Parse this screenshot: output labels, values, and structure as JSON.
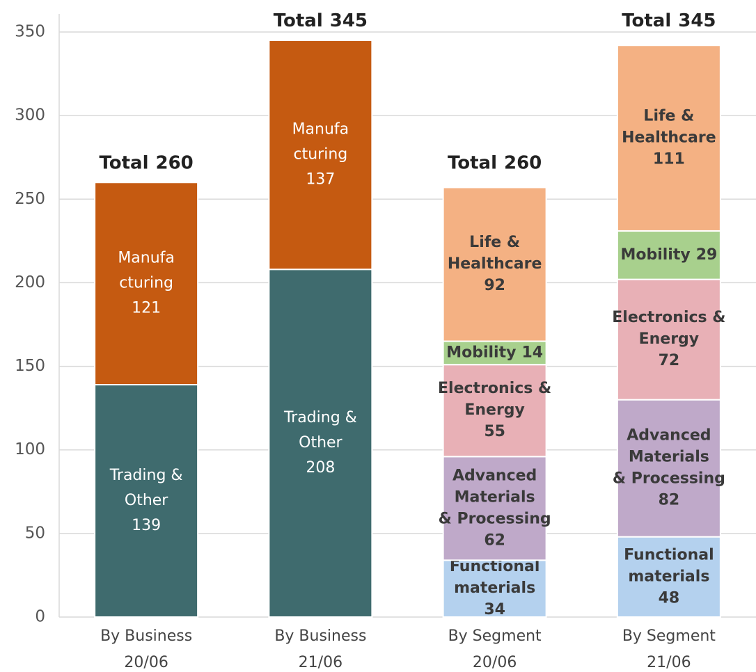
{
  "chart_data": {
    "type": "stacked_bar",
    "categories": [
      [
        "By Business",
        "20/06"
      ],
      [
        "By Business",
        "21/06"
      ],
      [
        "By Segment",
        "20/06"
      ],
      [
        "By Segment",
        "21/06"
      ]
    ],
    "series": [
      {
        "name": [
          "Trading &",
          "Other"
        ],
        "color": "#3f6b6e",
        "label_color": "#ffffff",
        "values": [
          139,
          208,
          null,
          null
        ]
      },
      {
        "name": [
          "Manufa",
          "cturing"
        ],
        "color": "#c55a11",
        "label_color": "#ffffff",
        "values": [
          121,
          137,
          null,
          null
        ]
      },
      {
        "name": [
          "Functional",
          "materials"
        ],
        "color": "#b4d1ee",
        "label_color": "#3a3a3a",
        "values": [
          null,
          null,
          34,
          48
        ]
      },
      {
        "name": [
          "Advanced",
          "Materials",
          "& Processing"
        ],
        "color": "#bfa9c9",
        "label_color": "#3a3a3a",
        "values": [
          null,
          null,
          62,
          82
        ]
      },
      {
        "name": [
          "Electronics &",
          "Energy"
        ],
        "color": "#e8b0b6",
        "label_color": "#3a3a3a",
        "values": [
          null,
          null,
          55,
          72
        ]
      },
      {
        "name": [
          "Mobility"
        ],
        "color": "#a8d08d",
        "label_color": "#3a3a3a",
        "values": [
          null,
          null,
          14,
          29
        ]
      },
      {
        "name": [
          "Life &",
          "Healthcare"
        ],
        "color": "#f4b183",
        "label_color": "#3a3a3a",
        "values": [
          null,
          null,
          92,
          111
        ]
      }
    ],
    "total_label": "Total",
    "totals": [
      260,
      345,
      260,
      345
    ],
    "ylim": [
      0,
      350
    ],
    "yticks": [
      0,
      50,
      100,
      150,
      200,
      250,
      300,
      350
    ],
    "grid": true
  }
}
